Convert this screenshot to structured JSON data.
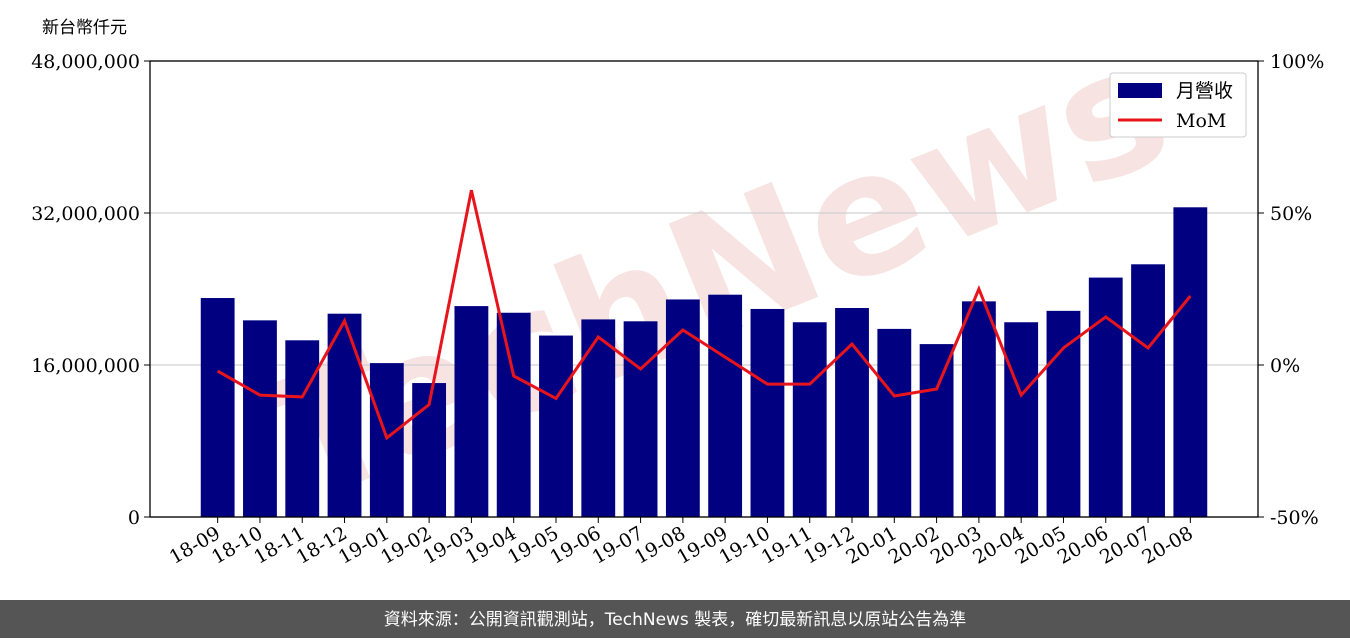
{
  "chart_data": {
    "type": "bar_line",
    "y_unit_label": "新台幣仟元",
    "watermark": "TechNews",
    "footer": "資料來源：公開資訊觀測站，TechNews 製表，確切最新訊息以原站公告為準",
    "categories": [
      "18-09",
      "18-10",
      "18-11",
      "18-12",
      "19-01",
      "19-02",
      "19-03",
      "19-04",
      "19-05",
      "19-06",
      "19-07",
      "19-08",
      "19-09",
      "19-10",
      "19-11",
      "19-12",
      "20-01",
      "20-02",
      "20-03",
      "20-04",
      "20-05",
      "20-06",
      "20-07",
      "20-08"
    ],
    "series": [
      {
        "name": "月營收",
        "type": "bar",
        "color": "#000080",
        "values": [
          23050000,
          20700000,
          18600000,
          21400000,
          16200000,
          14100000,
          22200000,
          21500000,
          19100000,
          20800000,
          20600000,
          22900000,
          23400000,
          21900000,
          20500000,
          22000000,
          19800000,
          18200000,
          22700000,
          20500000,
          21700000,
          25200000,
          26600000,
          32600000
        ]
      },
      {
        "name": "MoM",
        "type": "line",
        "axis": "y2",
        "color": "#e8141c",
        "values": [
          -2,
          -9.9,
          -10.5,
          14.5,
          -24,
          -13,
          57.5,
          -3.6,
          -11,
          9.2,
          -1.3,
          11.5,
          2.6,
          -6.3,
          -6.3,
          6.9,
          -10.2,
          -7.9,
          25,
          -9.9,
          5.6,
          15.8,
          5.6,
          22.7
        ]
      }
    ],
    "ylim": [
      0,
      48000000
    ],
    "yticks": [
      0,
      {
        "value": 16000000,
        "label": "16,000,000"
      },
      {
        "value": 32000000,
        "label": "32,000,000"
      },
      {
        "value": 48000000,
        "label": "48,000,000"
      }
    ],
    "y2lim": [
      -50,
      100
    ],
    "y2ticks": [
      {
        "value": -50,
        "label": "-50%"
      },
      {
        "value": 0,
        "label": "0%"
      },
      {
        "value": 50,
        "label": "50%"
      },
      {
        "value": 100,
        "label": "100%"
      }
    ],
    "grid": true,
    "legend": "upper right"
  }
}
